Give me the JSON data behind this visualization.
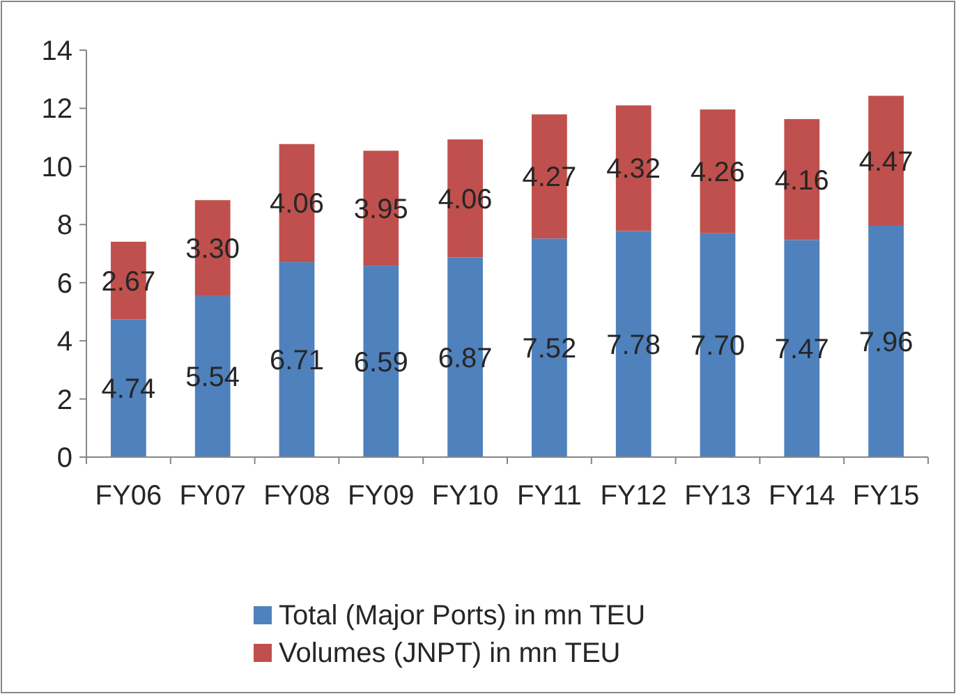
{
  "chart_data": {
    "type": "bar",
    "stacked": true,
    "categories": [
      "FY06",
      "FY07",
      "FY08",
      "FY09",
      "FY10",
      "FY11",
      "FY12",
      "FY13",
      "FY14",
      "FY15"
    ],
    "series": [
      {
        "name": "Total (Major Ports) in mn TEU",
        "color": "#4f81bd",
        "values": [
          4.74,
          5.54,
          6.71,
          6.59,
          6.87,
          7.52,
          7.78,
          7.7,
          7.47,
          7.96
        ]
      },
      {
        "name": "Volumes (JNPT) in mn TEU",
        "color": "#c0504d",
        "values": [
          2.67,
          3.3,
          4.06,
          3.95,
          4.06,
          4.27,
          4.32,
          4.26,
          4.16,
          4.47
        ]
      }
    ],
    "value_labels": [
      [
        "4.74",
        "5.54",
        "6.71",
        "6.59",
        "6.87",
        "7.52",
        "7.78",
        "7.70",
        "7.47",
        "7.96"
      ],
      [
        "2.67",
        "3.30",
        "4.06",
        "3.95",
        "4.06",
        "4.27",
        "4.32",
        "4.26",
        "4.16",
        "4.47"
      ]
    ],
    "ylim": [
      0,
      14
    ],
    "yticks": [
      0,
      2,
      4,
      6,
      8,
      10,
      12,
      14
    ],
    "grid": false,
    "legend": "bottom"
  }
}
